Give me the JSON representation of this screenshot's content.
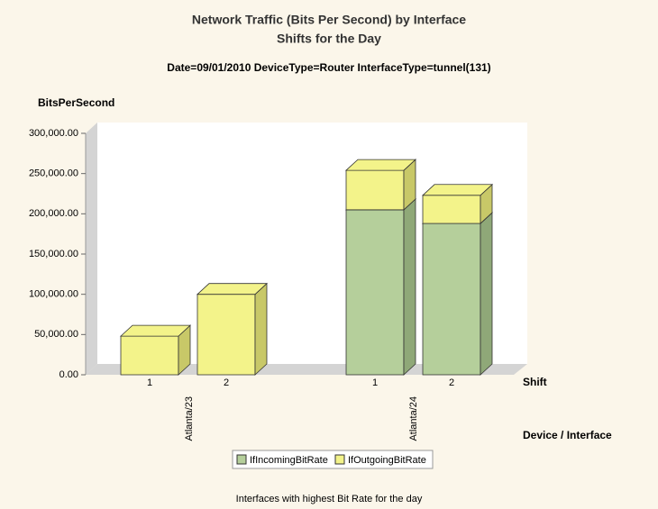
{
  "chart_data": {
    "type": "bar3d_stacked",
    "title": "Network Traffic (Bits Per Second) by Interface",
    "subtitle": "Shifts for the Day",
    "filter": "Date=09/01/2010 DeviceType=Router InterfaceType=tunnel(131)",
    "y_label": "BitsPerSecond",
    "x_label": "Shift",
    "group_label": "Device / Interface",
    "footer": "Interfaces with highest Bit Rate for the day",
    "groups": [
      {
        "name": "Atlanta/23",
        "categories": [
          "1",
          "2"
        ]
      },
      {
        "name": "Atlanta/24",
        "categories": [
          "1",
          "2"
        ]
      }
    ],
    "series": [
      {
        "name": "IfIncomingBitRate",
        "color": "#b5cf9b",
        "side": "#8fa878",
        "values": [
          null,
          null,
          205000,
          188000
        ]
      },
      {
        "name": "IfOutgoingBitRate",
        "color": "#f3f38a",
        "side": "#c8c868",
        "values": [
          48000,
          100000,
          49000,
          35000
        ]
      }
    ],
    "ylim": [
      0,
      300000
    ],
    "yticks": [
      {
        "value": 0,
        "label": "0.00"
      },
      {
        "value": 50000,
        "label": "50,000.00"
      },
      {
        "value": 100000,
        "label": "100,000.00"
      },
      {
        "value": 150000,
        "label": "150,000.00"
      },
      {
        "value": 200000,
        "label": "200,000.00"
      },
      {
        "value": 250000,
        "label": "250,000.00"
      },
      {
        "value": 300000,
        "label": "300,000.00"
      }
    ]
  }
}
